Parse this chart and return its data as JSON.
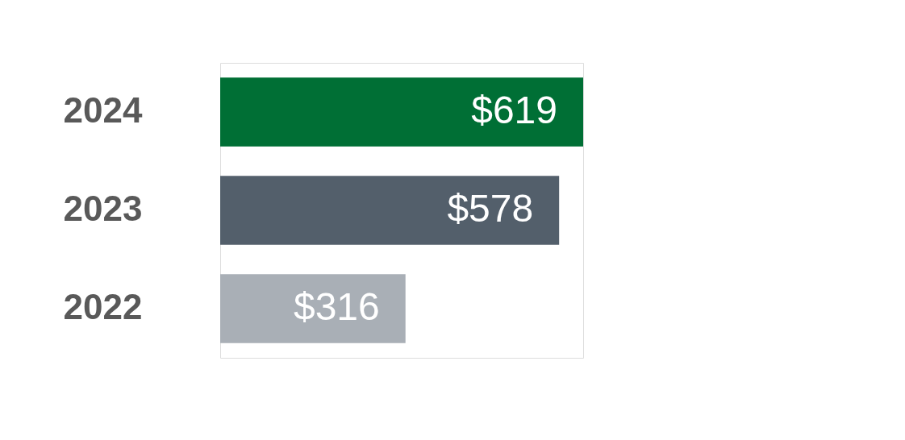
{
  "chart_data": {
    "type": "bar",
    "orientation": "horizontal",
    "categories": [
      "2024",
      "2023",
      "2022"
    ],
    "values": [
      619,
      578,
      316
    ],
    "colors": [
      "#006f35",
      "#535f6b",
      "#a9afb6"
    ],
    "value_labels": [
      "$619",
      "$578",
      "$316"
    ],
    "grid": false,
    "legend": false
  }
}
